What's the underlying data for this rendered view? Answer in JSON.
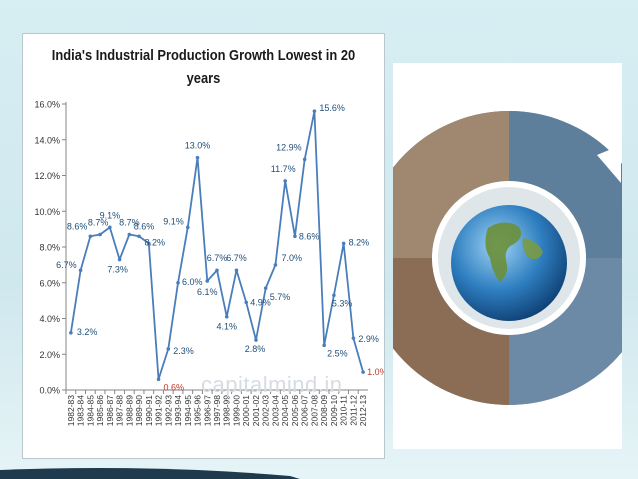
{
  "chart_data": {
    "type": "line",
    "title": "India's Industrial Production Growth Lowest in 20 years",
    "x": [
      "1982-83",
      "1983-84",
      "1984-85",
      "1985-86",
      "1986-87",
      "1987-88",
      "1988-89",
      "1989-90",
      "1990-91",
      "1991-92",
      "1992-93",
      "1993-94",
      "1994-95",
      "1995-96",
      "1996-97",
      "1997-98",
      "1998-99",
      "1999-00",
      "2000-01",
      "2001-02",
      "2002-03",
      "2003-04",
      "2004-05",
      "2005-06",
      "2006-07",
      "2007-08",
      "2008-09",
      "2009-10",
      "2010-11",
      "2011-12",
      "2012-13"
    ],
    "values": [
      3.2,
      6.7,
      8.6,
      8.7,
      9.1,
      7.3,
      8.7,
      8.6,
      8.2,
      0.6,
      2.3,
      6.0,
      9.1,
      13.0,
      6.1,
      6.7,
      4.1,
      6.7,
      4.9,
      2.8,
      5.7,
      7.0,
      11.7,
      8.6,
      12.9,
      15.6,
      2.5,
      5.3,
      8.2,
      2.9,
      1.0
    ],
    "labels": [
      "3.2%",
      "6.7%",
      "8.6%",
      "8.7%",
      "9.1%",
      "7.3%",
      "8.7%",
      "8.6%",
      "8.2%",
      "0.6%",
      "2.3%",
      "6.0%",
      "9.1%",
      "13.0%",
      "6.1%",
      "6.7%",
      "4.1%",
      "6.7%",
      "4.9%",
      "2.8%",
      "5.7%",
      "7.0%",
      "11.7%",
      "8.6%",
      "12.9%",
      "15.6%",
      "2.5%",
      "5.3%",
      "8.2%",
      "2.9%",
      "1.0%"
    ],
    "y_ticks": [
      "0.0%",
      "2.0%",
      "4.0%",
      "6.0%",
      "8.0%",
      "10.0%",
      "12.0%",
      "14.0%",
      "16.0%"
    ],
    "ylim": [
      0,
      16
    ],
    "grid": false,
    "legend": "none",
    "colors": {
      "line": "#4a7ebb",
      "label": "#1f4e79",
      "highlight_label": "#c0392b",
      "axis": "#868686"
    }
  },
  "watermark": "capitalmind.in",
  "images": {
    "photo_collage": "business-globe-collage"
  },
  "colors": {
    "background": "#d7eef3",
    "swoosh": "#1f3a4d"
  }
}
